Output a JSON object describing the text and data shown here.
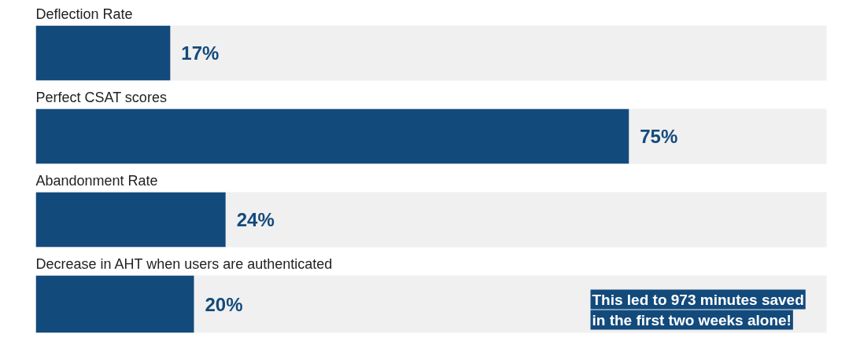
{
  "chart_data": {
    "type": "bar",
    "orientation": "horizontal",
    "categories": [
      "Deflection Rate",
      "Perfect CSAT scores",
      "Abandonment Rate",
      "Decrease in AHT when users are authenticated"
    ],
    "values": [
      17,
      75,
      24,
      20
    ],
    "color": "#134a7c",
    "data_labels": true,
    "value_labels": [
      "17%",
      "75%",
      "24%",
      "20%"
    ],
    "xlim": [
      0,
      100
    ],
    "annotations": [
      "This led to 973 minutes saved in the first two weeks alone!"
    ]
  }
}
